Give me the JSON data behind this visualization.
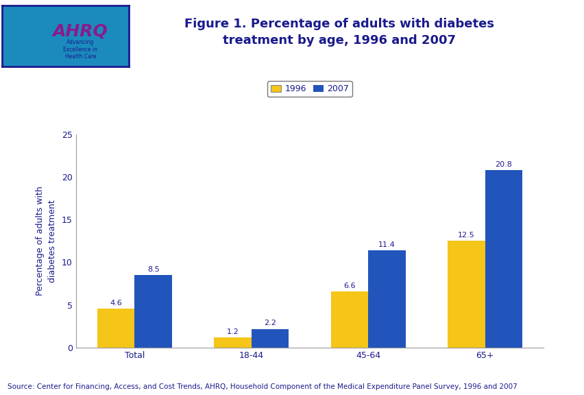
{
  "title": "Figure 1. Percentage of adults with diabetes\ntreatment by age, 1996 and 2007",
  "title_color": "#1A1A8C",
  "title_fontsize": 13,
  "categories": [
    "Total",
    "18-44",
    "45-64",
    "65+"
  ],
  "values_1996": [
    4.6,
    1.2,
    6.6,
    12.5
  ],
  "values_2007": [
    8.5,
    2.2,
    11.4,
    20.8
  ],
  "color_1996": "#F5C518",
  "color_2007": "#2255BB",
  "ylabel": "Percentage of adults with\ndiabetes treatment",
  "ylabel_color": "#1A1A8C",
  "ylabel_fontsize": 9,
  "xlabel_color": "#1A1A8C",
  "ylim": [
    0,
    25
  ],
  "yticks": [
    0,
    5,
    10,
    15,
    20,
    25
  ],
  "legend_labels": [
    "1996",
    "2007"
  ],
  "bar_width": 0.32,
  "source_text": "Source: Center for Financing, Access, and Cost Trends, AHRQ, Household Component of the Medical Expenditure Panel Survey, 1996 and 2007",
  "source_fontsize": 7.5,
  "source_color": "#1A1A8C",
  "header_bar_color": "#1A1A8C",
  "background_color": "#FFFFFF",
  "plot_bg_color": "#FFFFFF",
  "tick_label_fontsize": 9,
  "value_label_fontsize": 8,
  "value_label_color": "#1A1A8C",
  "logo_bg_color": "#1B8BBE",
  "logo_border_color": "#1A1A8C",
  "ahrq_color": "#8B1A8B",
  "ahrq_text_color": "#8B1A8B"
}
